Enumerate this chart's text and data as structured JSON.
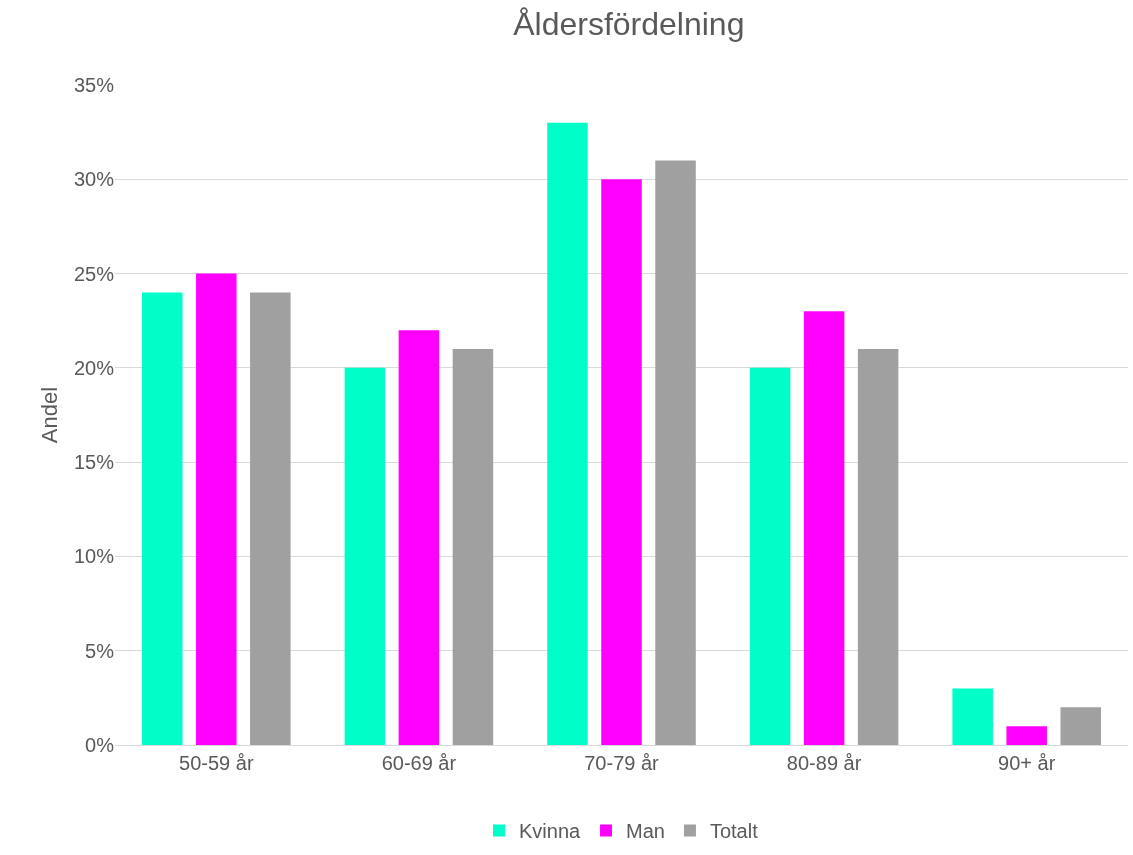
{
  "chart_data": {
    "type": "bar",
    "title": "Åldersfördelning",
    "ylabel": "Andel",
    "categories": [
      "50-59 år",
      "60-69 år",
      "70-79 år",
      "80-89 år",
      "90+ år"
    ],
    "series": [
      {
        "name": "Kvinna",
        "color": "#00ffc8",
        "values": [
          24,
          20,
          33,
          20,
          3
        ]
      },
      {
        "name": "Man",
        "color": "#ff00ff",
        "values": [
          25,
          22,
          30,
          23,
          1
        ]
      },
      {
        "name": "Totalt",
        "color": "#a0a0a0",
        "values": [
          24,
          21,
          31,
          21,
          2
        ]
      }
    ],
    "ylim": [
      0,
      35
    ],
    "yticks": [
      {
        "value": 0,
        "label": "0%"
      },
      {
        "value": 5,
        "label": "5%"
      },
      {
        "value": 10,
        "label": "10%"
      },
      {
        "value": 15,
        "label": "15%"
      },
      {
        "value": 20,
        "label": "20%"
      },
      {
        "value": 25,
        "label": "25%"
      },
      {
        "value": 30,
        "label": "30%"
      },
      {
        "value": 35,
        "label": "35%"
      }
    ],
    "grid": "y",
    "legend": "bottom"
  }
}
